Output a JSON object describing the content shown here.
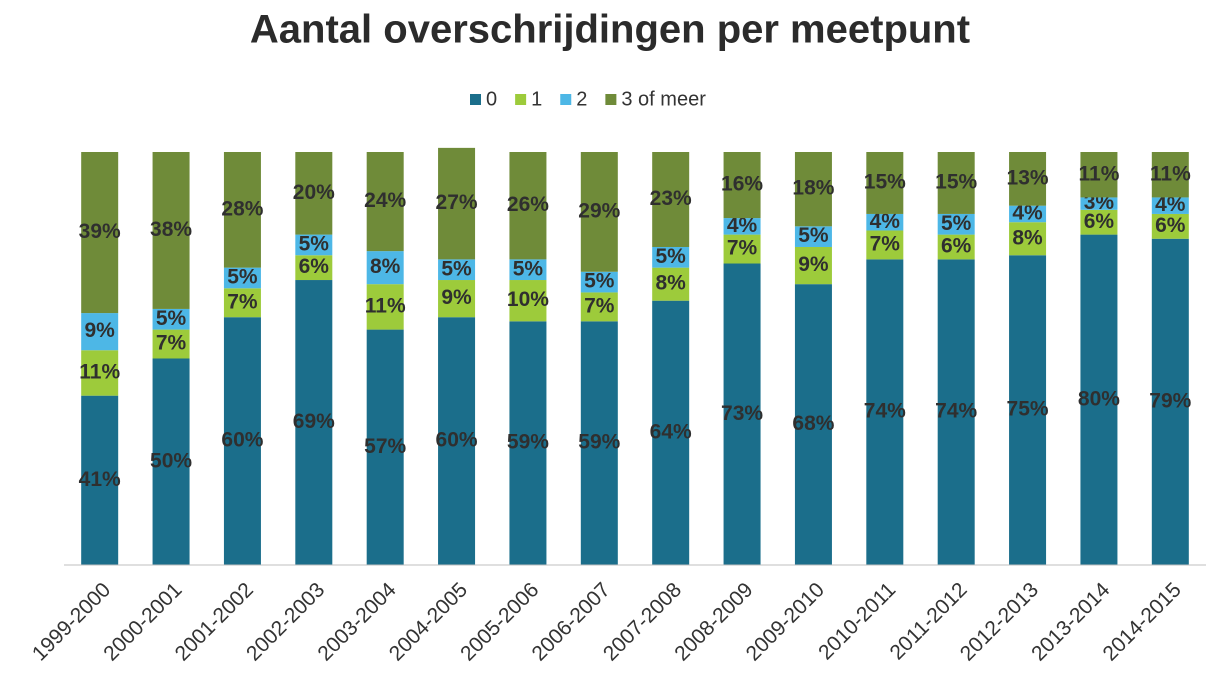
{
  "chart_data": {
    "type": "stacked_bar",
    "title": "Aantal overschrijdingen per meetpunt",
    "categories": [
      "1999-2000",
      "2000-2001",
      "2001-2002",
      "2002-2003",
      "2003-2004",
      "2004-2005",
      "2005-2006",
      "2006-2007",
      "2007-2008",
      "2008-2009",
      "2009-2010",
      "2010-2011",
      "2011-2012",
      "2012-2013",
      "2013-2014",
      "2014-2015"
    ],
    "ylim": [
      0,
      100
    ],
    "legend": "top",
    "series": [
      {
        "name": "0",
        "color": "#1b6e8b",
        "values": [
          41,
          50,
          60,
          69,
          57,
          60,
          59,
          59,
          64,
          73,
          68,
          74,
          74,
          75,
          80,
          79
        ],
        "value_labels": [
          "41%",
          "50%",
          "60%",
          "69%",
          "57%",
          "60%",
          "59%",
          "59%",
          "64%",
          "73%",
          "68%",
          "74%",
          "74%",
          "75%",
          "80%",
          "79%"
        ]
      },
      {
        "name": "1",
        "color": "#9dcb3b",
        "values": [
          11,
          7,
          7,
          6,
          11,
          9,
          10,
          7,
          8,
          7,
          9,
          7,
          6,
          8,
          6,
          6
        ],
        "value_labels": [
          "11%",
          "7%",
          "7%",
          "6%",
          "11%",
          "9%",
          "10%",
          "7%",
          "8%",
          "7%",
          "9%",
          "7%",
          "6%",
          "8%",
          "6%",
          "6%"
        ]
      },
      {
        "name": "2",
        "color": "#4db7e6",
        "values": [
          9,
          5,
          5,
          5,
          8,
          5,
          5,
          5,
          5,
          4,
          5,
          4,
          5,
          4,
          3,
          4
        ],
        "value_labels": [
          "9%",
          "5%",
          "5%",
          "5%",
          "8%",
          "5%",
          "5%",
          "5%",
          "5%",
          "4%",
          "5%",
          "4%",
          "5%",
          "4%",
          "3%",
          "4%"
        ]
      },
      {
        "name": "3 of meer",
        "color": "#6f8b39",
        "values": [
          39,
          38,
          28,
          20,
          24,
          27,
          26,
          29,
          23,
          16,
          18,
          15,
          15,
          13,
          11,
          11
        ],
        "value_labels": [
          "39%",
          "38%",
          "28%",
          "20%",
          "24%",
          "27%",
          "26%",
          "29%",
          "23%",
          "16%",
          "18%",
          "15%",
          "15%",
          "13%",
          "11%",
          "11%"
        ]
      }
    ]
  }
}
